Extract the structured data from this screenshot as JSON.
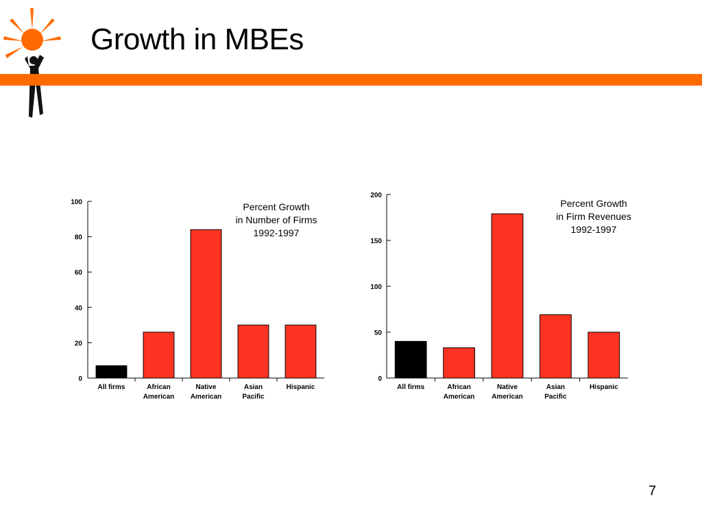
{
  "slide": {
    "title": "Growth in MBEs",
    "page_number": "7",
    "colors": {
      "accent_bar": "#ff6a00",
      "logo_orange": "#ff6a00"
    },
    "logo_icon": "sun-person-logo-icon"
  },
  "chart_data": [
    {
      "type": "bar",
      "title": [
        "Percent Growth",
        "in Number of Firms",
        "1992-1997"
      ],
      "categories": [
        [
          "All firms"
        ],
        [
          "African",
          "American"
        ],
        [
          "Native",
          "American"
        ],
        [
          "Asian",
          "Pacific"
        ],
        [
          "Hispanic"
        ]
      ],
      "values": [
        7,
        26,
        84,
        30,
        30
      ],
      "bar_colors": [
        "#000000",
        "#ff3322",
        "#ff3322",
        "#ff3322",
        "#ff3322"
      ],
      "ylim": [
        0,
        100
      ],
      "yticks": [
        "0",
        "20",
        "40",
        "60",
        "80",
        "100"
      ],
      "grid": false,
      "xlabel": "",
      "ylabel": ""
    },
    {
      "type": "bar",
      "title": [
        "Percent Growth",
        "in Firm Revenues",
        "1992-1997"
      ],
      "categories": [
        [
          "All firms"
        ],
        [
          "African",
          "American"
        ],
        [
          "Native",
          "American"
        ],
        [
          "Asian",
          "Pacific"
        ],
        [
          "Hispanic"
        ]
      ],
      "values": [
        40,
        33,
        179,
        69,
        50
      ],
      "bar_colors": [
        "#000000",
        "#ff3322",
        "#ff3322",
        "#ff3322",
        "#ff3322"
      ],
      "ylim": [
        0,
        200
      ],
      "yticks": [
        "0",
        "50",
        "100",
        "150",
        "200"
      ],
      "grid": false,
      "xlabel": "",
      "ylabel": ""
    }
  ]
}
